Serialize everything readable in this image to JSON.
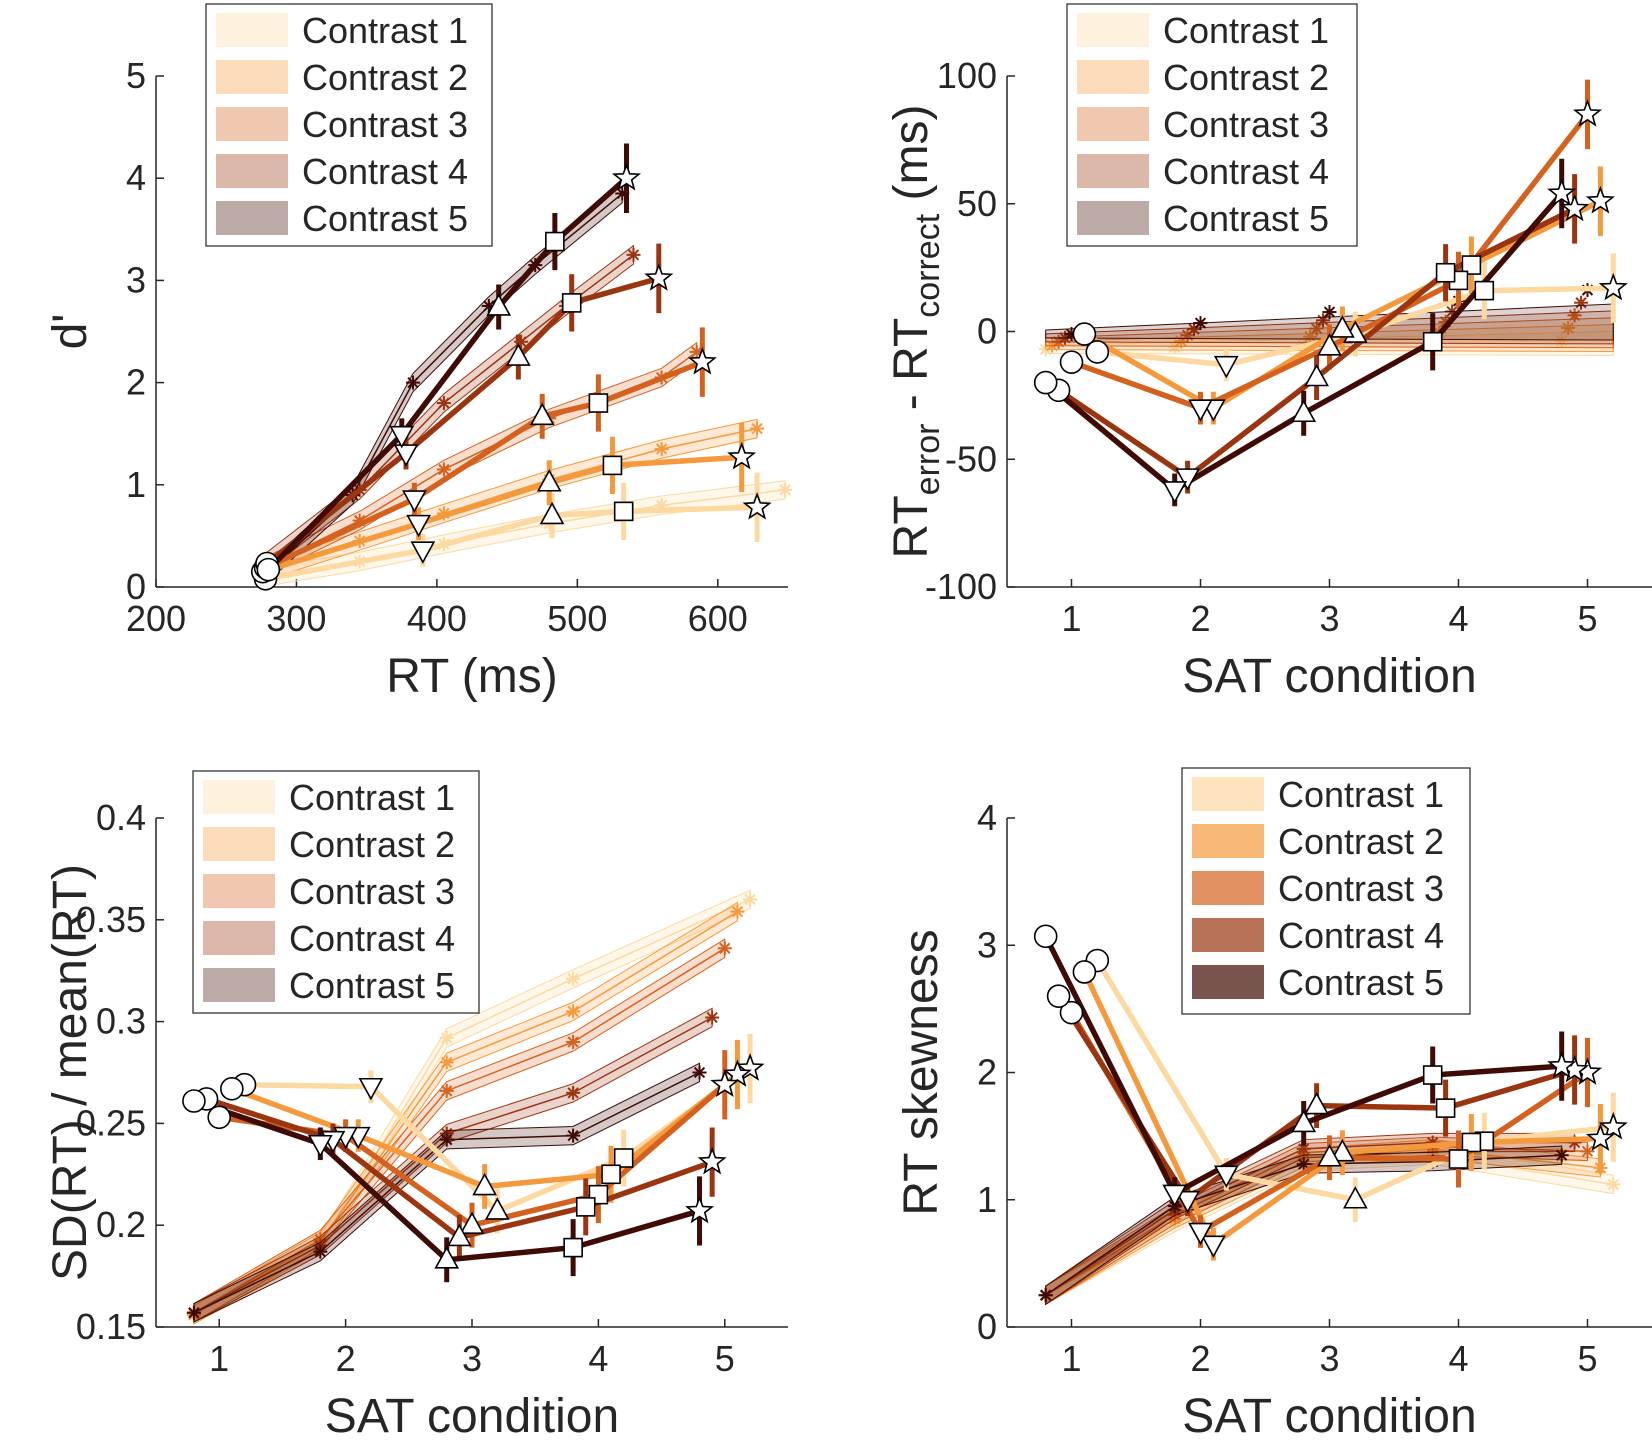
{
  "colors": {
    "contrast": [
      "#fcd9a0",
      "#f59a3c",
      "#d4621e",
      "#9a3510",
      "#3f0b04"
    ],
    "axis": "#262626"
  },
  "legend_labels": [
    "Contrast 1",
    "Contrast 2",
    "Contrast 3",
    "Contrast 4",
    "Contrast 5"
  ],
  "marker_legend": {
    "1": "circle",
    "2": "triangle-down",
    "3": "triangle-up",
    "4": "square",
    "5": "star"
  },
  "chart_data": [
    {
      "id": "dprime",
      "type": "line",
      "xlabel": "RT (ms)",
      "ylabel": "d'",
      "xlim": [
        200,
        650
      ],
      "ylim": [
        0,
        5
      ],
      "xticks": [
        200,
        300,
        400,
        500,
        600
      ],
      "yticks": [
        0,
        1,
        2,
        3,
        4,
        5
      ],
      "legend": {
        "placement": "top-right"
      },
      "series": [
        {
          "name": "Contrast 1",
          "x": [
            278,
            390,
            482,
            533,
            628
          ],
          "y": [
            0.08,
            0.36,
            0.7,
            0.74,
            0.78
          ],
          "model": {
            "x": [
              278,
              345,
              405,
              480,
              560,
              648
            ],
            "y": [
              0.1,
              0.25,
              0.42,
              0.62,
              0.8,
              0.95
            ]
          }
        },
        {
          "name": "Contrast 2",
          "x": [
            276,
            387,
            480,
            525,
            617
          ],
          "y": [
            0.15,
            0.62,
            1.02,
            1.19,
            1.27
          ],
          "model": {
            "x": [
              276,
              345,
              405,
              480,
              560,
              628
            ],
            "y": [
              0.15,
              0.45,
              0.72,
              1.05,
              1.35,
              1.55
            ]
          }
        },
        {
          "name": "Contrast 3",
          "x": [
            278,
            384,
            475,
            515,
            589
          ],
          "y": [
            0.19,
            0.86,
            1.67,
            1.8,
            2.2
          ],
          "model": {
            "x": [
              278,
              345,
              405,
              480,
              560,
              585
            ],
            "y": [
              0.2,
              0.65,
              1.15,
              1.65,
              2.05,
              2.3
            ]
          }
        },
        {
          "name": "Contrast 4",
          "x": [
            279,
            378,
            458,
            496,
            558
          ],
          "y": [
            0.23,
            1.31,
            2.25,
            2.78,
            3.02
          ],
          "model": {
            "x": [
              279,
              345,
              405,
              460,
              492,
              540
            ],
            "y": [
              0.25,
              0.95,
              1.8,
              2.4,
              2.75,
              3.25
            ]
          }
        },
        {
          "name": "Contrast 5",
          "x": [
            280,
            375,
            444,
            484,
            535
          ],
          "y": [
            0.17,
            1.49,
            2.74,
            3.38,
            4.0
          ],
          "model": {
            "x": [
              280,
              340,
              383,
              437,
              470,
              532
            ],
            "y": [
              0.15,
              0.9,
              2.0,
              2.75,
              3.15,
              3.85
            ]
          }
        }
      ]
    },
    {
      "id": "rtdiff",
      "type": "line",
      "xlabel": "SAT condition",
      "ylabel": "RT_error - RT_correct (ms)",
      "ylabel_parts": {
        "main": "RT",
        "sub1": "error",
        "minus": " - RT",
        "sub2": "correct",
        "unit": " (ms)"
      },
      "xlim": [
        0.5,
        5.5
      ],
      "ylim": [
        -100,
        100
      ],
      "xticks": [
        1,
        2,
        3,
        4,
        5
      ],
      "yticks": [
        -100,
        -50,
        0,
        50,
        100
      ],
      "legend": {
        "placement": "top-left"
      },
      "series": [
        {
          "name": "Contrast 1",
          "x": [
            1.2,
            2.2,
            3.2,
            4.2,
            5.2
          ],
          "y": [
            -8,
            -13,
            -1,
            16,
            17
          ]
        },
        {
          "name": "Contrast 2",
          "x": [
            1.1,
            2.1,
            3.1,
            4.1,
            5.1
          ],
          "y": [
            -1,
            -30,
            1,
            26,
            51
          ]
        },
        {
          "name": "Contrast 3",
          "x": [
            1.0,
            2.0,
            3.0,
            4.0,
            5.0
          ],
          "y": [
            -12,
            -30,
            -6,
            20,
            85
          ]
        },
        {
          "name": "Contrast 4",
          "x": [
            0.9,
            1.9,
            2.9,
            3.9,
            4.9
          ],
          "y": [
            -23,
            -57,
            -18,
            23,
            48
          ]
        },
        {
          "name": "Contrast 5",
          "x": [
            0.8,
            1.8,
            2.8,
            3.8,
            4.8
          ],
          "y": [
            -20,
            -62,
            -32,
            -4,
            54
          ]
        }
      ]
    },
    {
      "id": "cv",
      "type": "line",
      "xlabel": "SAT condition",
      "ylabel": "SD(RT) / mean(RT)",
      "xlim": [
        0.5,
        5.5
      ],
      "ylim": [
        0.15,
        0.4
      ],
      "xticks": [
        1,
        2,
        3,
        4,
        5
      ],
      "yticks": [
        0.15,
        0.2,
        0.25,
        0.3,
        0.35,
        0.4
      ],
      "legend": {
        "placement": "top-left"
      },
      "series": [
        {
          "name": "Contrast 1",
          "x": [
            1.2,
            2.2,
            3.2,
            4.2,
            5.2
          ],
          "y": [
            0.269,
            0.268,
            0.207,
            0.233,
            0.277
          ],
          "model": {
            "x": [
              0.8,
              1.8,
              2.8,
              3.8,
              5.2
            ],
            "y": [
              0.156,
              0.19,
              0.292,
              0.321,
              0.36
            ]
          }
        },
        {
          "name": "Contrast 2",
          "x": [
            1.1,
            2.1,
            3.1,
            4.1,
            5.1
          ],
          "y": [
            0.267,
            0.244,
            0.219,
            0.225,
            0.274
          ],
          "model": {
            "x": [
              0.8,
              1.8,
              2.8,
              3.8,
              5.1
            ],
            "y": [
              0.156,
              0.192,
              0.28,
              0.305,
              0.354
            ]
          }
        },
        {
          "name": "Contrast 3",
          "x": [
            1.0,
            2.0,
            3.0,
            4.0,
            5.0
          ],
          "y": [
            0.253,
            0.244,
            0.2,
            0.215,
            0.269
          ],
          "model": {
            "x": [
              0.8,
              1.8,
              2.8,
              3.8,
              5.0
            ],
            "y": [
              0.157,
              0.193,
              0.266,
              0.29,
              0.336
            ]
          }
        },
        {
          "name": "Contrast 4",
          "x": [
            0.9,
            1.9,
            2.9,
            3.9,
            4.9
          ],
          "y": [
            0.262,
            0.242,
            0.194,
            0.209,
            0.231
          ],
          "model": {
            "x": [
              0.8,
              1.8,
              2.8,
              3.8,
              4.9
            ],
            "y": [
              0.157,
              0.19,
              0.245,
              0.265,
              0.302
            ]
          }
        },
        {
          "name": "Contrast 5",
          "x": [
            0.8,
            1.8,
            2.8,
            3.8,
            4.8
          ],
          "y": [
            0.261,
            0.24,
            0.183,
            0.189,
            0.207
          ],
          "model": {
            "x": [
              0.8,
              1.8,
              2.8,
              3.8,
              4.8
            ],
            "y": [
              0.157,
              0.187,
              0.242,
              0.244,
              0.275
            ]
          }
        }
      ]
    },
    {
      "id": "skew",
      "type": "line",
      "xlabel": "SAT condition",
      "ylabel": "RT skewness",
      "xlim": [
        0.5,
        5.5
      ],
      "ylim": [
        0,
        4
      ],
      "xticks": [
        1,
        2,
        3,
        4,
        5
      ],
      "yticks": [
        0,
        1,
        2,
        3,
        4
      ],
      "legend": {
        "placement": "top-right"
      },
      "series": [
        {
          "name": "Contrast 1",
          "x": [
            1.2,
            2.2,
            3.2,
            4.2,
            5.2
          ],
          "y": [
            2.88,
            1.2,
            1.0,
            1.46,
            1.57
          ],
          "model": {
            "x": [
              0.8,
              1.8,
              2.8,
              3.8,
              5.2
            ],
            "y": [
              0.25,
              0.82,
              1.3,
              1.35,
              1.12
            ]
          }
        },
        {
          "name": "Contrast 2",
          "x": [
            1.1,
            2.1,
            3.1,
            4.1,
            5.1
          ],
          "y": [
            2.79,
            0.65,
            1.37,
            1.45,
            1.48
          ],
          "model": {
            "x": [
              0.8,
              1.8,
              2.8,
              3.8,
              5.1
            ],
            "y": [
              0.25,
              0.85,
              1.33,
              1.4,
              1.25
            ]
          }
        },
        {
          "name": "Contrast 3",
          "x": [
            1.0,
            2.0,
            3.0,
            4.0,
            5.0
          ],
          "y": [
            2.47,
            0.75,
            1.33,
            1.32,
            2.0
          ],
          "model": {
            "x": [
              0.8,
              1.8,
              2.8,
              3.8,
              5.0
            ],
            "y": [
              0.25,
              0.88,
              1.37,
              1.42,
              1.38
            ]
          }
        },
        {
          "name": "Contrast 4",
          "x": [
            0.9,
            1.9,
            2.9,
            3.9,
            4.9
          ],
          "y": [
            2.6,
            1.0,
            1.74,
            1.72,
            2.02
          ],
          "model": {
            "x": [
              0.8,
              1.8,
              2.8,
              3.8,
              4.9
            ],
            "y": [
              0.25,
              0.92,
              1.4,
              1.45,
              1.45
            ]
          }
        },
        {
          "name": "Contrast 5",
          "x": [
            0.8,
            1.8,
            2.8,
            3.8,
            4.8
          ],
          "y": [
            3.07,
            1.05,
            1.6,
            1.98,
            2.05
          ],
          "model": {
            "x": [
              0.8,
              1.8,
              2.8,
              3.8,
              4.8
            ],
            "y": [
              0.25,
              0.95,
              1.28,
              1.3,
              1.35
            ]
          }
        }
      ]
    }
  ]
}
